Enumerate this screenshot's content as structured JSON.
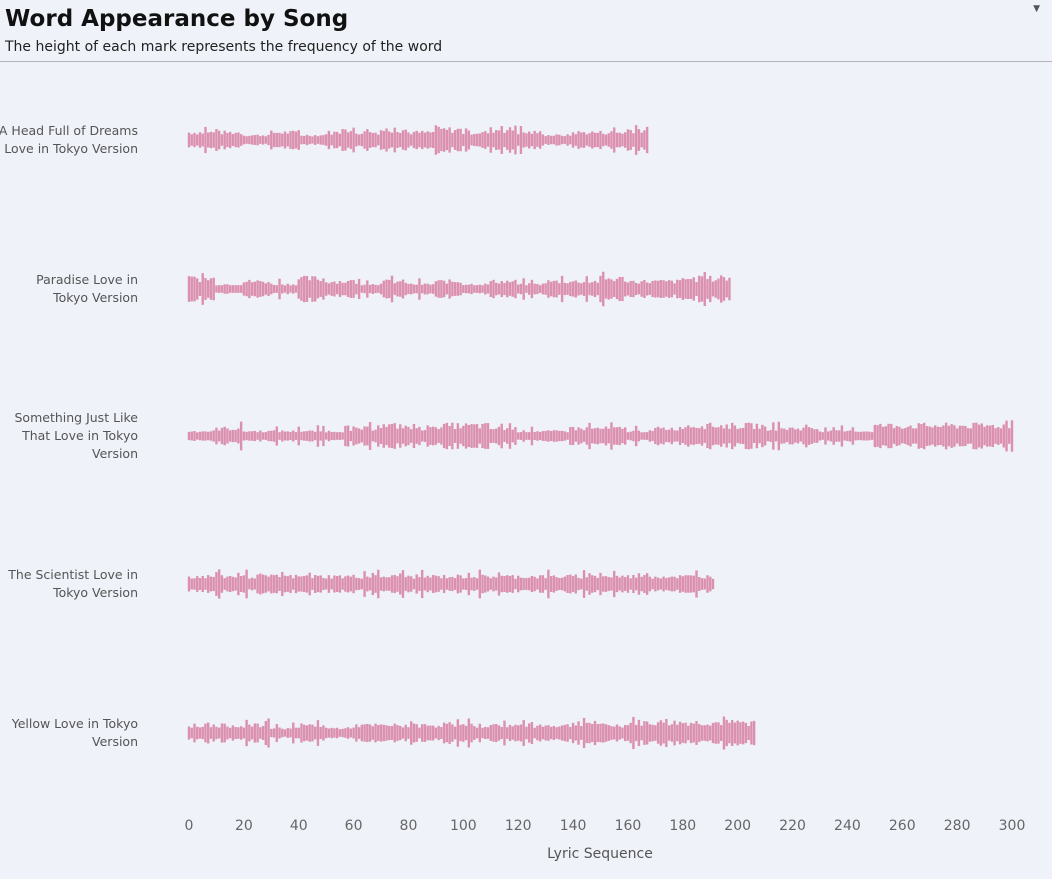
{
  "header": {
    "title": "Word Appearance by Song",
    "subtitle": "The height of each mark represents the frequency of the word"
  },
  "chart_data": {
    "type": "scatter",
    "title": "Word Appearance by Song",
    "subtitle": "The height of each mark represents the frequency of the word",
    "xlabel": "Lyric Sequence",
    "xlim": [
      0,
      300
    ],
    "xticks": [
      "0",
      "20",
      "40",
      "60",
      "80",
      "100",
      "120",
      "140",
      "160",
      "180",
      "200",
      "220",
      "240",
      "260",
      "280",
      "300"
    ],
    "mark_color": "#d46f96",
    "profile_note_step": 10,
    "songs": [
      {
        "label": "A Head Full of Dreams Love in Tokyo Version",
        "length": 167,
        "frequency_profile": [
          2,
          2,
          1,
          2,
          1,
          2,
          2,
          3,
          2,
          3,
          2,
          3,
          2,
          1,
          2,
          2,
          3
        ]
      },
      {
        "label": "Paradise Love in Tokyo Version",
        "length": 197,
        "frequency_profile": [
          3,
          1,
          2,
          1,
          3,
          2,
          1,
          2,
          1,
          2,
          1,
          2,
          1,
          2,
          2,
          3,
          2,
          2,
          3,
          3
        ]
      },
      {
        "label": "Something Just Like That Love in Tokyo Version",
        "length": 300,
        "frequency_profile": [
          1,
          2,
          1,
          1,
          1,
          1,
          2,
          3,
          2,
          3,
          3,
          2,
          1,
          1,
          2,
          2,
          1,
          2,
          3,
          3,
          3,
          2,
          2,
          1,
          1,
          3,
          3,
          3,
          3,
          3
        ]
      },
      {
        "label": "The Scientist Love in Tokyo Version",
        "length": 191,
        "frequency_profile": [
          2,
          2,
          2,
          2,
          2,
          2,
          2,
          2,
          2,
          2,
          2,
          2,
          2,
          2,
          2,
          2,
          2,
          2,
          2,
          2
        ]
      },
      {
        "label": "Yellow Love in Tokyo Version",
        "length": 206,
        "frequency_profile": [
          2,
          2,
          2,
          1,
          2,
          1,
          2,
          2,
          2,
          2,
          2,
          2,
          2,
          2,
          3,
          2,
          3,
          3,
          3,
          3,
          3
        ]
      }
    ]
  }
}
